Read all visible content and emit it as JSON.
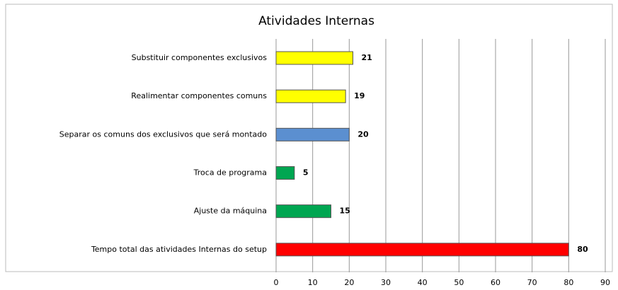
{
  "chart_data": {
    "type": "bar",
    "orientation": "horizontal",
    "title": "Atividades Internas",
    "categories": [
      "Substituir componentes exclusivos",
      "Realimentar componentes comuns",
      "Separar os comuns dos exclusivos que será montado",
      "Troca de programa",
      "Ajuste da máquina",
      "Tempo total das atividades Internas do setup"
    ],
    "values": [
      21,
      19,
      20,
      5,
      15,
      80
    ],
    "colors": [
      "#ffff00",
      "#ffff00",
      "#5b8fd0",
      "#00a651",
      "#00a651",
      "#ff0000"
    ],
    "xlim": [
      0,
      90
    ],
    "xticks": [
      0,
      10,
      20,
      30,
      40,
      50,
      60,
      70,
      80,
      90
    ],
    "grid": true
  }
}
